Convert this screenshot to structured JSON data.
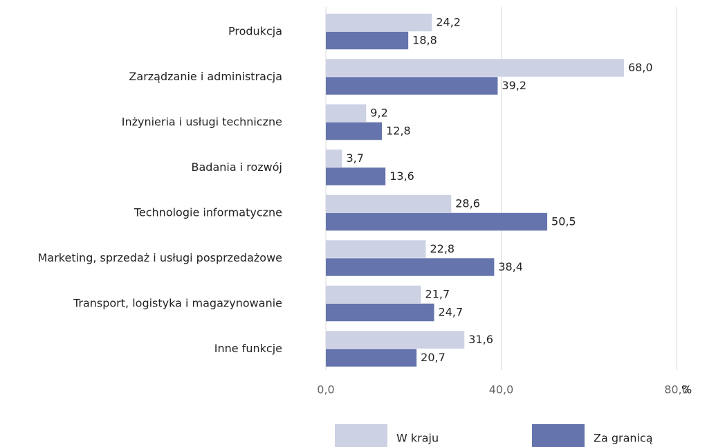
{
  "chart_data": {
    "type": "barh",
    "categories": [
      "Produkcja",
      "Zarządzanie i administracja",
      "Inżynieria i usługi techniczne",
      "Badania i rozwój",
      "Technologie informatyczne",
      "Marketing, sprzedaż i usługi posprzedażowe",
      "Transport, logistyka i magazynowanie",
      "Inne funkcje"
    ],
    "series": [
      {
        "name": "W kraju",
        "color": "#cdd1e4",
        "values": [
          24.2,
          68.0,
          9.2,
          3.7,
          28.6,
          22.8,
          21.7,
          31.6
        ],
        "value_labels": [
          "24,2",
          "68,0",
          "9,2",
          "3,7",
          "28,6",
          "22,8",
          "21,7",
          "31,6"
        ]
      },
      {
        "name": "Za granicą",
        "color": "#6574ad",
        "values": [
          18.8,
          39.2,
          12.8,
          13.6,
          50.5,
          38.4,
          24.7,
          20.7
        ],
        "value_labels": [
          "18,8",
          "39,2",
          "12,8",
          "13,6",
          "50,5",
          "38,4",
          "24,7",
          "20,7"
        ]
      }
    ],
    "xlim": [
      0,
      80
    ],
    "xticks": [
      {
        "value": 0,
        "label": "0,0"
      },
      {
        "value": 40,
        "label": "40,0"
      },
      {
        "value": 80,
        "label": "80,0"
      }
    ],
    "xlabel": "%",
    "grid": true,
    "legend": "bottom"
  }
}
